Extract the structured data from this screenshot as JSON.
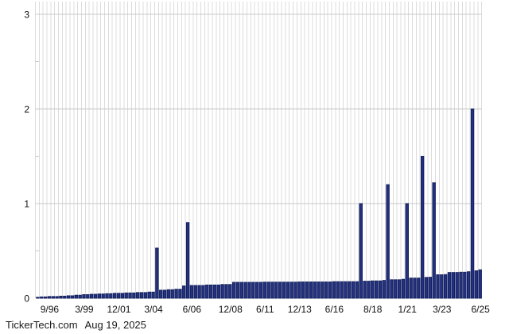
{
  "footer": {
    "source": "TickerTech.com",
    "date": "Aug 19, 2025"
  },
  "chart_data": {
    "type": "bar",
    "title": "",
    "xlabel": "",
    "ylabel": "",
    "legend": "none",
    "grid": "vertical line per bar slot, horizontal lines at whole values",
    "y_axis": {
      "range": [
        0,
        3.13
      ],
      "major_ticks": [
        0,
        1,
        2,
        3
      ],
      "tick_labels": [
        "0",
        "1",
        "2",
        "3"
      ],
      "minor_ticks": [
        0.5,
        1.5,
        2.5
      ]
    },
    "x_axis": {
      "ticks": [
        {
          "label": "9/96",
          "bar_index": 3
        },
        {
          "label": "3/99",
          "bar_index": 12
        },
        {
          "label": "12/01",
          "bar_index": 21
        },
        {
          "label": "3/04",
          "bar_index": 30
        },
        {
          "label": "6/06",
          "bar_index": 40
        },
        {
          "label": "12/08",
          "bar_index": 50
        },
        {
          "label": "6/11",
          "bar_index": 59
        },
        {
          "label": "12/13",
          "bar_index": 68
        },
        {
          "label": "6/16",
          "bar_index": 77
        },
        {
          "label": "8/18",
          "bar_index": 87
        },
        {
          "label": "1/21",
          "bar_index": 96
        },
        {
          "label": "3/23",
          "bar_index": 105
        },
        {
          "label": "6/25",
          "bar_index": 115
        }
      ]
    },
    "values": [
      0.01,
      0.014,
      0.014,
      0.018,
      0.018,
      0.018,
      0.022,
      0.022,
      0.026,
      0.026,
      0.032,
      0.032,
      0.038,
      0.038,
      0.042,
      0.042,
      0.045,
      0.045,
      0.048,
      0.048,
      0.052,
      0.052,
      0.052,
      0.056,
      0.056,
      0.056,
      0.06,
      0.06,
      0.06,
      0.065,
      0.065,
      0.53,
      0.085,
      0.085,
      0.09,
      0.09,
      0.095,
      0.095,
      0.13,
      0.8,
      0.135,
      0.135,
      0.135,
      0.135,
      0.14,
      0.14,
      0.14,
      0.14,
      0.145,
      0.145,
      0.145,
      0.168,
      0.168,
      0.168,
      0.168,
      0.168,
      0.168,
      0.168,
      0.168,
      0.17,
      0.17,
      0.17,
      0.17,
      0.17,
      0.17,
      0.17,
      0.17,
      0.17,
      0.172,
      0.172,
      0.172,
      0.172,
      0.172,
      0.172,
      0.172,
      0.172,
      0.172,
      0.175,
      0.175,
      0.175,
      0.175,
      0.175,
      0.175,
      0.175,
      1.0,
      0.18,
      0.18,
      0.183,
      0.183,
      0.183,
      0.188,
      1.2,
      0.195,
      0.195,
      0.195,
      0.2,
      1.0,
      0.213,
      0.213,
      0.213,
      1.5,
      0.22,
      0.222,
      1.22,
      0.248,
      0.248,
      0.25,
      0.272,
      0.272,
      0.272,
      0.275,
      0.275,
      0.28,
      2.0,
      0.29,
      0.3
    ],
    "colors": {
      "bar_fill": "#24327f",
      "bar_edge": "#101d5c",
      "grid_vertical": "#dcdcdc",
      "grid_horizontal": "#c8c8c8",
      "text": "#111111",
      "background": "#ffffff"
    }
  }
}
